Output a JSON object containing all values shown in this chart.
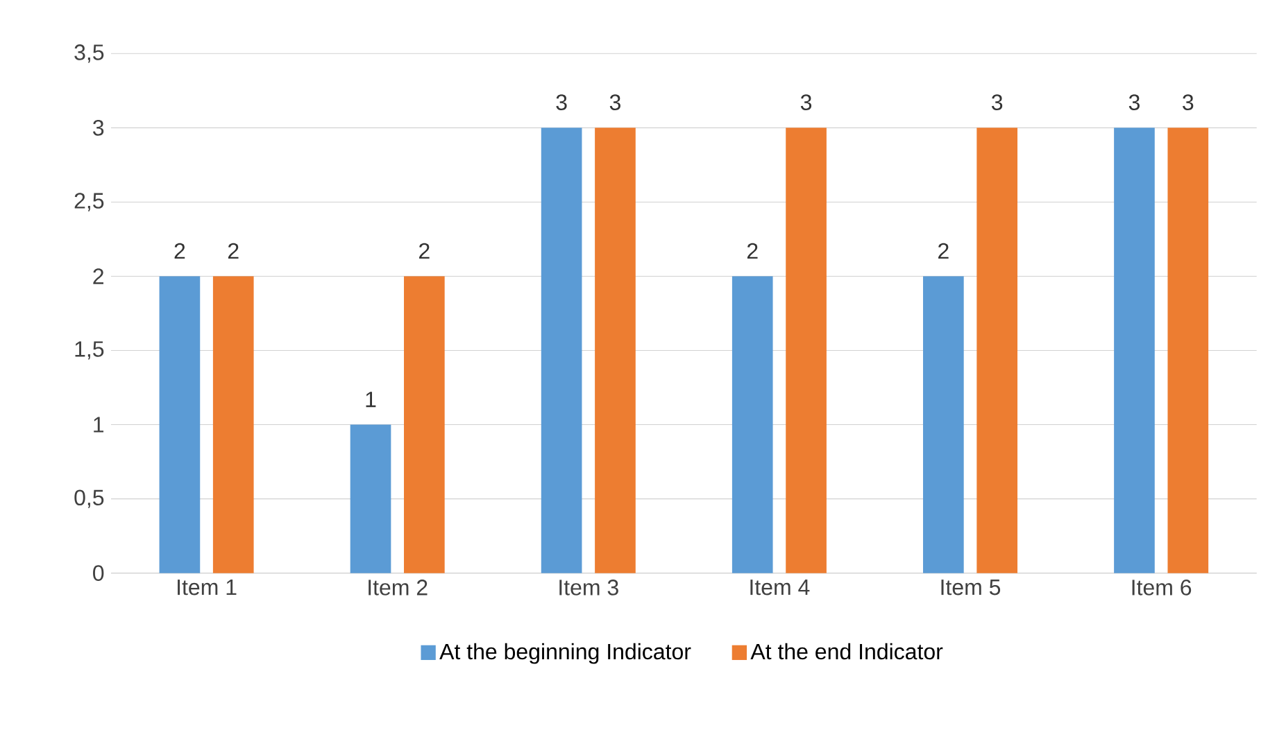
{
  "chart_data": {
    "type": "bar",
    "categories": [
      "Item 1",
      "Item 2",
      "Item 3",
      "Item 4",
      "Item 5",
      "Item 6"
    ],
    "series": [
      {
        "name": "At the beginning Indicator",
        "color": "#5b9bd5",
        "values": [
          2,
          1,
          3,
          2,
          2,
          3
        ]
      },
      {
        "name": "At the end Indicator",
        "color": "#ed7d31",
        "values": [
          2,
          2,
          3,
          3,
          3,
          3
        ]
      }
    ],
    "ylim": [
      0,
      3.5
    ],
    "yticks": [
      0,
      {
        "value": 0.5,
        "label": "0,5"
      },
      1,
      {
        "value": 1.5,
        "label": "1,5"
      },
      2,
      {
        "value": 2.5,
        "label": "2,5"
      },
      3,
      {
        "value": 3.5,
        "label": "3,5"
      }
    ],
    "grid": "y",
    "legend": "bottom",
    "data_labels": true
  }
}
